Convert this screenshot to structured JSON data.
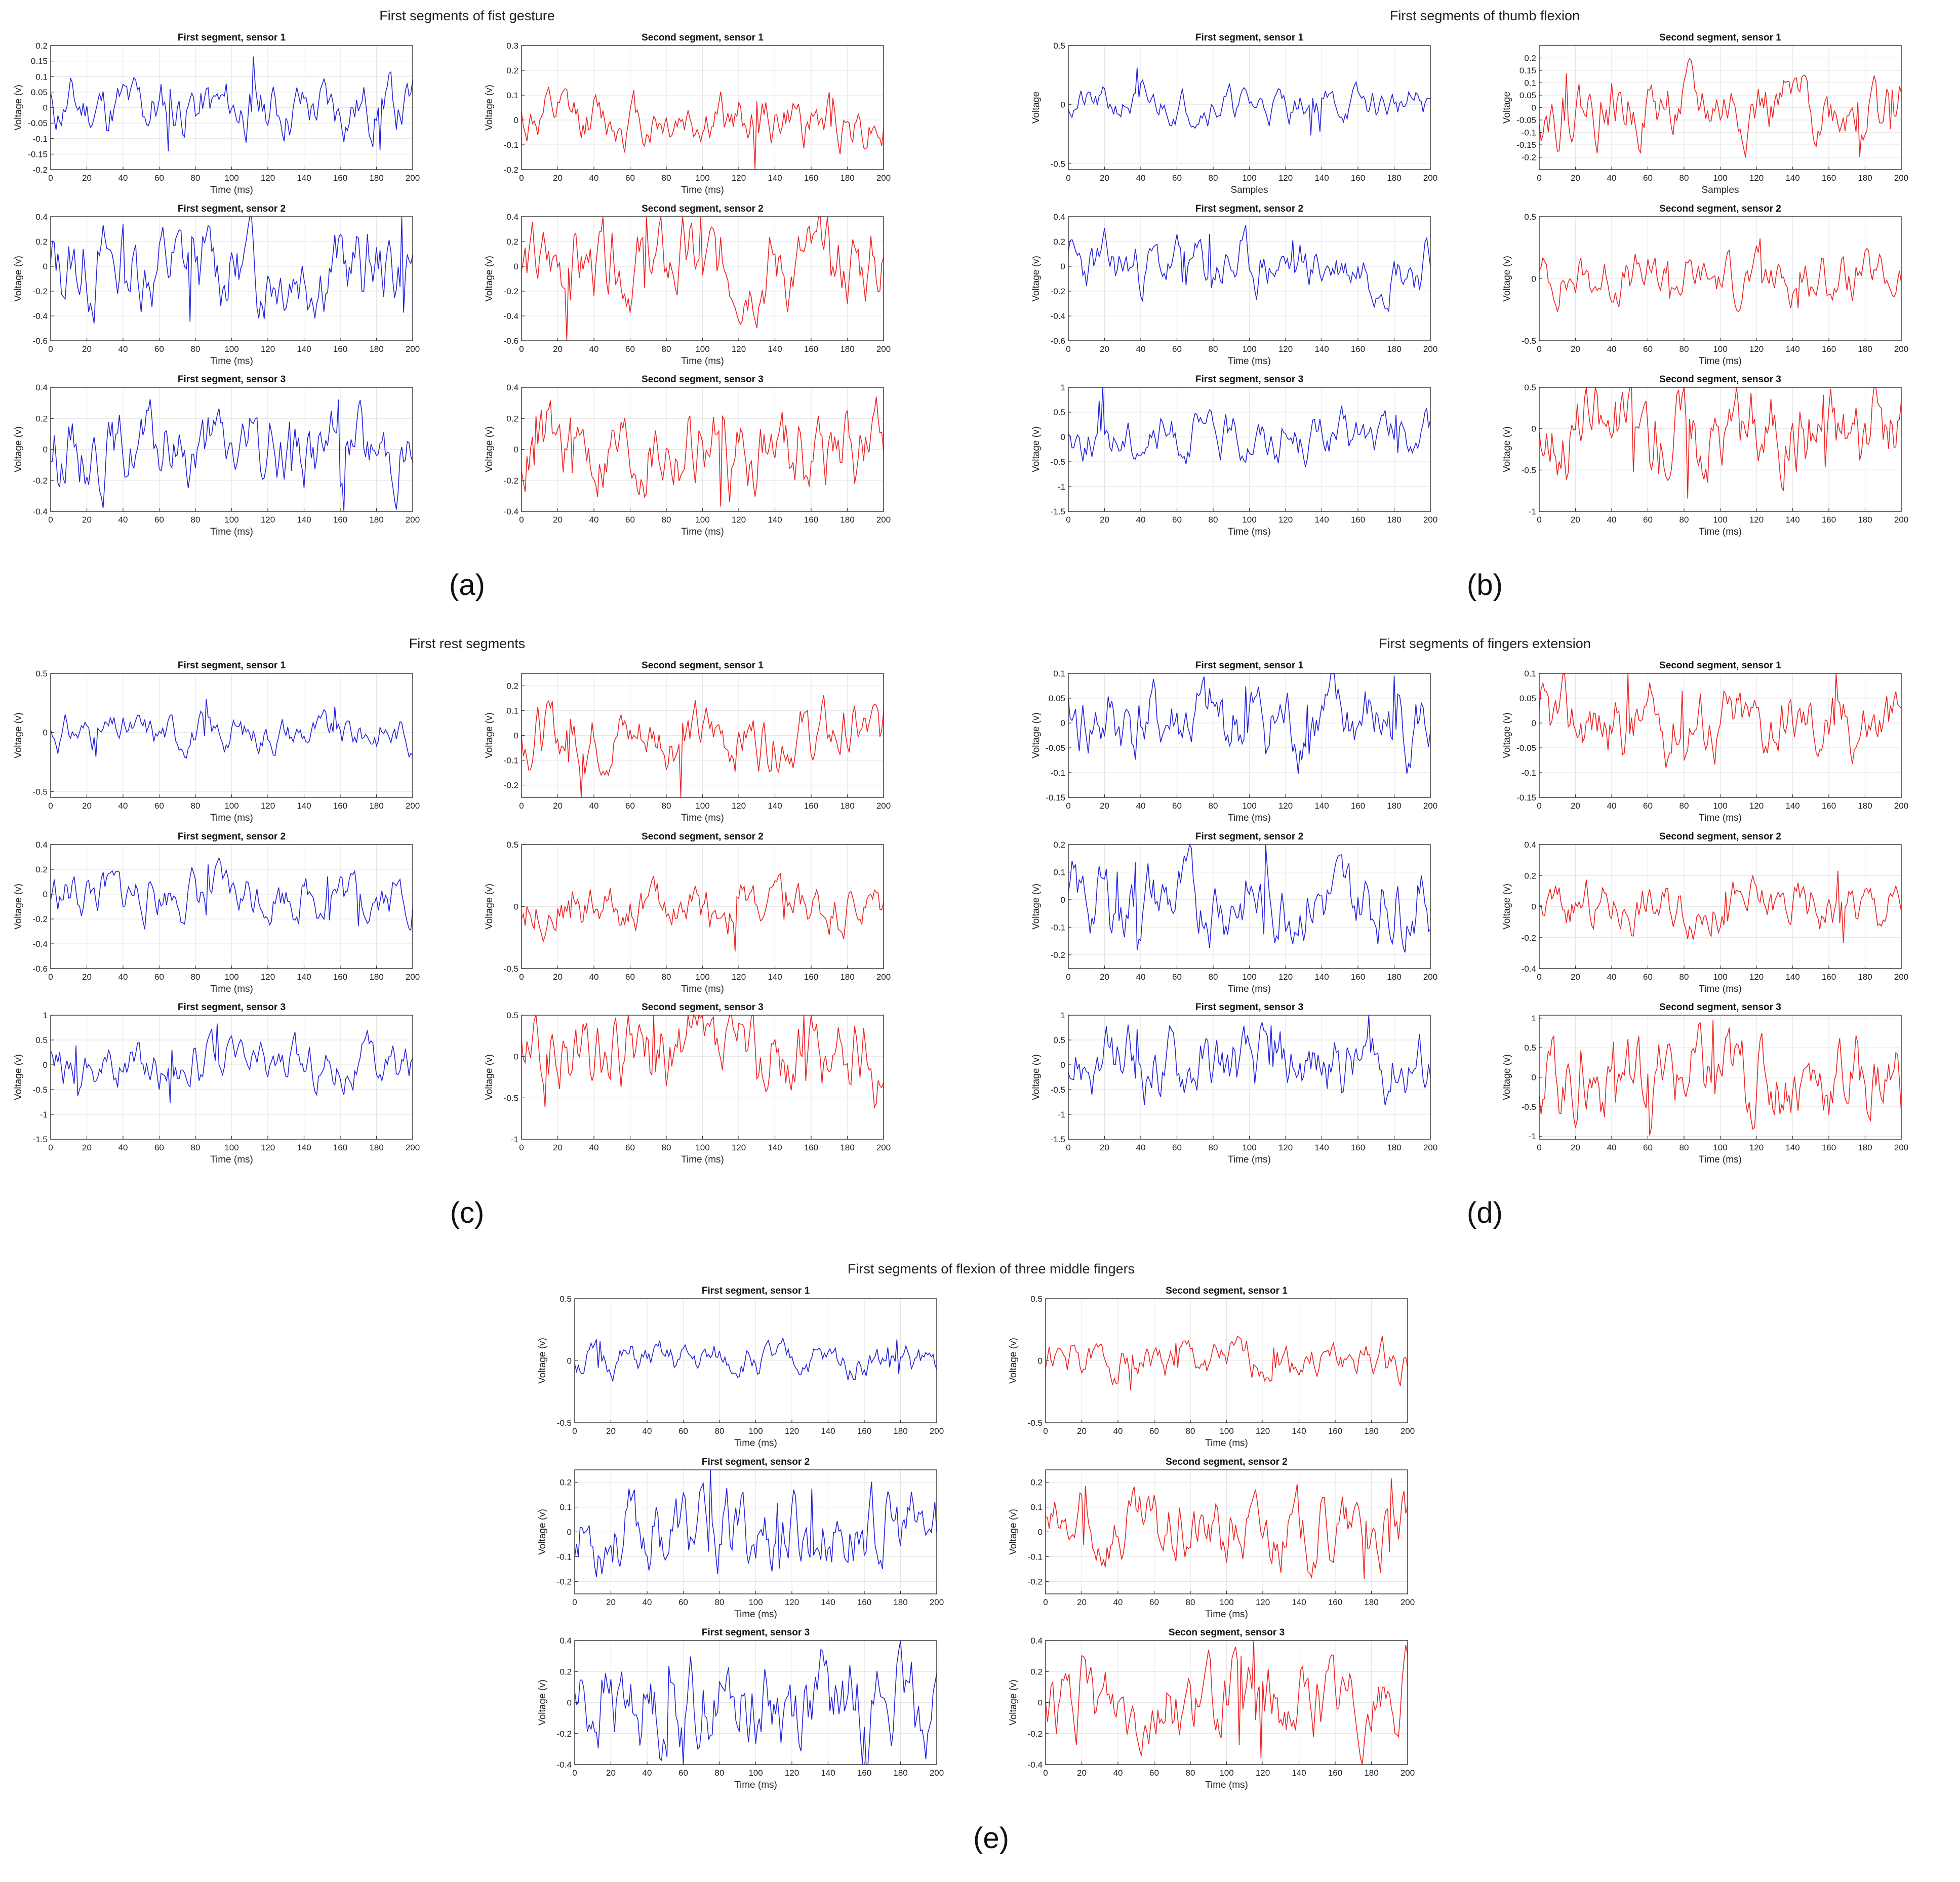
{
  "panels": [
    {
      "id": "a",
      "label": "(a)",
      "title": "First segments of fist gesture",
      "subplots": [
        {
          "title": "First segment, sensor 1",
          "color": "blue",
          "ylim": [
            -0.2,
            0.2
          ],
          "yticks": [
            -0.2,
            -0.15,
            -0.1,
            -0.05,
            0,
            0.05,
            0.1,
            0.15,
            0.2
          ],
          "xlabel": "Time (ms)",
          "ylabel": "Voltage (v)",
          "seed": 11,
          "amp": 0.045
        },
        {
          "title": "Second segment, sensor 1",
          "color": "red",
          "ylim": [
            -0.2,
            0.3
          ],
          "yticks": [
            -0.2,
            -0.1,
            0,
            0.1,
            0.2,
            0.3
          ],
          "xlabel": "Time (ms)",
          "ylabel": "Voltage (v)",
          "seed": 12,
          "amp": 0.05
        },
        {
          "title": "First segment, sensor 2",
          "color": "blue",
          "ylim": [
            -0.6,
            0.4
          ],
          "yticks": [
            -0.6,
            -0.4,
            -0.2,
            0,
            0.2,
            0.4
          ],
          "xlabel": "Time (ms)",
          "ylabel": "Voltage (v)",
          "seed": 13,
          "amp": 0.18
        },
        {
          "title": "Second segment, sensor 2",
          "color": "red",
          "ylim": [
            -0.6,
            0.4
          ],
          "yticks": [
            -0.6,
            -0.4,
            -0.2,
            0,
            0.2,
            0.4
          ],
          "xlabel": "Time (ms)",
          "ylabel": "Voltage (v)",
          "seed": 14,
          "amp": 0.19
        },
        {
          "title": "First segment, sensor 3",
          "color": "blue",
          "ylim": [
            -0.4,
            0.4
          ],
          "yticks": [
            -0.4,
            -0.2,
            0,
            0.2,
            0.4
          ],
          "xlabel": "Time (ms)",
          "ylabel": "Voltage (v)",
          "seed": 15,
          "amp": 0.12
        },
        {
          "title": "Second segment, sensor 3",
          "color": "red",
          "ylim": [
            -0.4,
            0.4
          ],
          "yticks": [
            -0.4,
            -0.2,
            0,
            0.2,
            0.4
          ],
          "xlabel": "Time (ms)",
          "ylabel": "Voltage (v)",
          "seed": 16,
          "amp": 0.13
        }
      ]
    },
    {
      "id": "b",
      "label": "(b)",
      "title": "First segments of thumb flexion",
      "subplots": [
        {
          "title": "First segment, sensor 1",
          "color": "blue",
          "ylim": [
            -0.55,
            0.5
          ],
          "yticks": [
            -0.5,
            0,
            0.5
          ],
          "xlabel": "Samples",
          "ylabel": "Voltage",
          "seed": 21,
          "amp": 0.08
        },
        {
          "title": "Second segment, sensor 1",
          "color": "red",
          "ylim": [
            -0.25,
            0.25
          ],
          "yticks": [
            -0.2,
            -0.15,
            -0.1,
            -0.05,
            0,
            0.05,
            0.1,
            0.15,
            0.2
          ],
          "xlabel": "Samples",
          "ylabel": "Voltage",
          "seed": 22,
          "amp": 0.07
        },
        {
          "title": "First segment, sensor 2",
          "color": "blue",
          "ylim": [
            -0.6,
            0.4
          ],
          "yticks": [
            -0.6,
            -0.4,
            -0.2,
            0,
            0.2,
            0.4
          ],
          "xlabel": "Time (ms)",
          "ylabel": "Voltage (v)",
          "seed": 23,
          "amp": 0.11
        },
        {
          "title": "Second segment, sensor 2",
          "color": "red",
          "ylim": [
            -0.5,
            0.5
          ],
          "yticks": [
            -0.5,
            0,
            0.5
          ],
          "xlabel": "Time (ms)",
          "ylabel": "Voltage (v)",
          "seed": 24,
          "amp": 0.1
        },
        {
          "title": "First segment, sensor 3",
          "color": "blue",
          "ylim": [
            -1.5,
            1
          ],
          "yticks": [
            -1.5,
            -1,
            -0.5,
            0,
            0.5,
            1
          ],
          "xlabel": "Time (ms)",
          "ylabel": "Voltage (v)",
          "seed": 25,
          "amp": 0.25
        },
        {
          "title": "Second segment, sensor 3",
          "color": "red",
          "ylim": [
            -1,
            0.5
          ],
          "yticks": [
            -1,
            -0.5,
            0,
            0.5
          ],
          "xlabel": "Time (ms)",
          "ylabel": "Voltage (v)",
          "seed": 26,
          "amp": 0.25
        }
      ]
    },
    {
      "id": "c",
      "label": "(c)",
      "title": "First rest segments",
      "subplots": [
        {
          "title": "First segment, sensor 1",
          "color": "blue",
          "ylim": [
            -0.55,
            0.5
          ],
          "yticks": [
            -0.5,
            0,
            0.5
          ],
          "xlabel": "Time (ms)",
          "ylabel": "Voltage (v)",
          "seed": 31,
          "amp": 0.08
        },
        {
          "title": "Second segment, sensor 1",
          "color": "red",
          "ylim": [
            -0.25,
            0.25
          ],
          "yticks": [
            -0.2,
            -0.1,
            0,
            0.1,
            0.2
          ],
          "xlabel": "Time (ms)",
          "ylabel": "Voltage (v)",
          "seed": 32,
          "amp": 0.07
        },
        {
          "title": "First segment, sensor 2",
          "color": "blue",
          "ylim": [
            -0.6,
            0.4
          ],
          "yticks": [
            -0.6,
            -0.4,
            -0.2,
            0,
            0.2,
            0.4
          ],
          "xlabel": "Time (ms)",
          "ylabel": "Voltage (v)",
          "seed": 33,
          "amp": 0.11
        },
        {
          "title": "Second segment, sensor 2",
          "color": "red",
          "ylim": [
            -0.5,
            0.5
          ],
          "yticks": [
            -0.5,
            0,
            0.5
          ],
          "xlabel": "Time (ms)",
          "ylabel": "Voltage (v)",
          "seed": 34,
          "amp": 0.1
        },
        {
          "title": "First segment, sensor 3",
          "color": "blue",
          "ylim": [
            -1.5,
            1
          ],
          "yticks": [
            -1.5,
            -1,
            -0.5,
            0,
            0.5,
            1
          ],
          "xlabel": "Time (ms)",
          "ylabel": "Voltage (v)",
          "seed": 35,
          "amp": 0.25
        },
        {
          "title": "Second segment, sensor 3",
          "color": "red",
          "ylim": [
            -1,
            0.5
          ],
          "yticks": [
            -1,
            -0.5,
            0,
            0.5
          ],
          "xlabel": "Time (ms)",
          "ylabel": "Voltage (v)",
          "seed": 36,
          "amp": 0.25
        }
      ]
    },
    {
      "id": "d",
      "label": "(d)",
      "title": "First segments of fingers extension",
      "subplots": [
        {
          "title": "First segment, sensor 1",
          "color": "blue",
          "ylim": [
            -0.15,
            0.1
          ],
          "yticks": [
            -0.15,
            -0.1,
            -0.05,
            0,
            0.05,
            0.1
          ],
          "xlabel": "Time (ms)",
          "ylabel": "Voltage (v)",
          "seed": 41,
          "amp": 0.035
        },
        {
          "title": "Second segment, sensor 1",
          "color": "red",
          "ylim": [
            -0.15,
            0.1
          ],
          "yticks": [
            -0.15,
            -0.1,
            -0.05,
            0,
            0.05,
            0.1
          ],
          "xlabel": "Time (ms)",
          "ylabel": "Voltage (v)",
          "seed": 42,
          "amp": 0.035
        },
        {
          "title": "First segment, sensor 2",
          "color": "blue",
          "ylim": [
            -0.25,
            0.2
          ],
          "yticks": [
            -0.2,
            -0.1,
            0,
            0.1,
            0.2
          ],
          "xlabel": "Time (ms)",
          "ylabel": "Voltage (v)",
          "seed": 43,
          "amp": 0.08
        },
        {
          "title": "Second segment, sensor 2",
          "color": "red",
          "ylim": [
            -0.4,
            0.4
          ],
          "yticks": [
            -0.4,
            -0.2,
            0,
            0.2,
            0.4
          ],
          "xlabel": "Time (ms)",
          "ylabel": "Voltage (v)",
          "seed": 44,
          "amp": 0.08
        },
        {
          "title": "First segment, sensor 3",
          "color": "blue",
          "ylim": [
            -1.5,
            1
          ],
          "yticks": [
            -1.5,
            -1,
            -0.5,
            0,
            0.5,
            1
          ],
          "xlabel": "Time (ms)",
          "ylabel": "Voltage (v)",
          "seed": 45,
          "amp": 0.32
        },
        {
          "title": "Second segment, sensor 3",
          "color": "red",
          "ylim": [
            -1.05,
            1.05
          ],
          "yticks": [
            -1,
            -0.5,
            0,
            0.5,
            1
          ],
          "xlabel": "Time (ms)",
          "ylabel": "Voltage (v)",
          "seed": 46,
          "amp": 0.35
        }
      ]
    },
    {
      "id": "e",
      "label": "(e)",
      "title": "First segments of flexion of three middle fingers",
      "subplots": [
        {
          "title": "First segment, sensor 1",
          "color": "blue",
          "ylim": [
            -0.5,
            0.5
          ],
          "yticks": [
            -0.5,
            0,
            0.5
          ],
          "xlabel": "Time (ms)",
          "ylabel": "Voltage (v)",
          "seed": 51,
          "amp": 0.07
        },
        {
          "title": "Second segment, sensor 1",
          "color": "red",
          "ylim": [
            -0.5,
            0.5
          ],
          "yticks": [
            -0.5,
            0,
            0.5
          ],
          "xlabel": "Time (ms)",
          "ylabel": "Voltage (v)",
          "seed": 52,
          "amp": 0.08
        },
        {
          "title": "First segment, sensor 2",
          "color": "blue",
          "ylim": [
            -0.25,
            0.25
          ],
          "yticks": [
            -0.2,
            -0.1,
            0,
            0.1,
            0.2
          ],
          "xlabel": "Time (ms)",
          "ylabel": "Voltage (v)",
          "seed": 53,
          "amp": 0.08
        },
        {
          "title": "Second segment, sensor 2",
          "color": "red",
          "ylim": [
            -0.25,
            0.25
          ],
          "yticks": [
            -0.2,
            -0.1,
            0,
            0.1,
            0.2
          ],
          "xlabel": "Time (ms)",
          "ylabel": "Voltage (v)",
          "seed": 54,
          "amp": 0.08
        },
        {
          "title": "First segment, sensor 3",
          "color": "blue",
          "ylim": [
            -0.4,
            0.4
          ],
          "yticks": [
            -0.4,
            -0.2,
            0,
            0.2,
            0.4
          ],
          "xlabel": "Time (ms)",
          "ylabel": "Voltage (v)",
          "seed": 55,
          "amp": 0.15
        },
        {
          "title": "Secon segment, sensor 3",
          "color": "red",
          "ylim": [
            -0.4,
            0.4
          ],
          "yticks": [
            -0.4,
            -0.2,
            0,
            0.2,
            0.4
          ],
          "xlabel": "Time (ms)",
          "ylabel": "Voltage (v)",
          "seed": 56,
          "amp": 0.14
        }
      ]
    }
  ],
  "chart_data": {
    "type": "line",
    "xlim": [
      0,
      200
    ],
    "xticks": [
      0,
      20,
      40,
      60,
      80,
      100,
      120,
      140,
      160,
      180,
      200
    ],
    "grid": true,
    "series_colors": {
      "blue": "#2222dd",
      "red": "#ee2222"
    },
    "note_series": "201 samples per subplot over 0–200"
  }
}
